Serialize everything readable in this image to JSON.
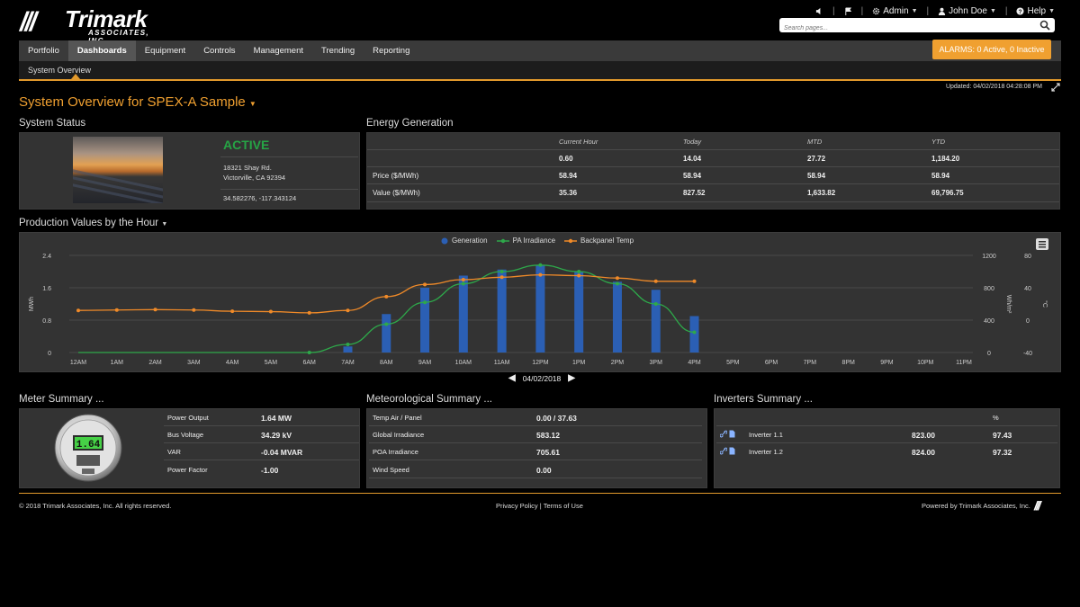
{
  "header": {
    "logo_text": "Trimark",
    "logo_sub": "ASSOCIATES, INC.",
    "logo_mark": "///",
    "links": [
      {
        "label": "",
        "icon": "volume-icon"
      },
      {
        "label": "",
        "icon": "flag-icon"
      },
      {
        "label": "Admin",
        "icon": "gear-icon"
      },
      {
        "label": "John Doe",
        "icon": "user-icon"
      },
      {
        "label": "Help",
        "icon": "help-icon"
      }
    ],
    "search_placeholder": "Search pages..."
  },
  "nav": {
    "tabs": [
      "Portfolio",
      "Dashboards",
      "Equipment",
      "Controls",
      "Management",
      "Trending",
      "Reporting"
    ],
    "active_tab": "Dashboards",
    "sub_tab": "System Overview",
    "alarm": "ALARMS: 0 Active, 0 Inactive"
  },
  "page": {
    "updated": "Updated: 04/02/2018 04:28:08 PM",
    "title": "System Overview for SPEX-A Sample"
  },
  "system_status": {
    "title": "System Status",
    "status": "ACTIVE",
    "address1": "18321 Shay Rd.",
    "address2": "Victorville, CA 92394",
    "coords": "34.582276, -117.343124"
  },
  "energy": {
    "title": "Energy Generation",
    "headers": [
      "Current Hour",
      "Today",
      "MTD",
      "YTD"
    ],
    "rows": [
      {
        "label": "",
        "values": [
          "0.60",
          "14.04",
          "27.72",
          "1,184.20"
        ]
      },
      {
        "label": "Price ($/MWh)",
        "values": [
          "58.94",
          "58.94",
          "58.94",
          "58.94"
        ]
      },
      {
        "label": "Value ($/MWh)",
        "values": [
          "35.36",
          "827.52",
          "1,633.82",
          "69,796.75"
        ]
      }
    ]
  },
  "production": {
    "title": "Production Values by the Hour",
    "date": "04/02/2018"
  },
  "chart_data": {
    "type": "bar",
    "categories": [
      "12AM",
      "1AM",
      "2AM",
      "3AM",
      "4AM",
      "5AM",
      "6AM",
      "7AM",
      "8AM",
      "9AM",
      "10AM",
      "11AM",
      "12PM",
      "1PM",
      "2PM",
      "3PM",
      "4PM",
      "5PM",
      "6PM",
      "7PM",
      "8PM",
      "9PM",
      "10PM",
      "11PM"
    ],
    "series": [
      {
        "name": "Generation",
        "type": "bar",
        "axis": "MWh",
        "color": "#2b5fb4",
        "values": [
          0,
          0,
          0,
          0,
          0,
          0,
          0,
          0.15,
          0.95,
          1.6,
          1.9,
          2.05,
          2.15,
          2.0,
          1.75,
          1.55,
          0.9,
          null,
          null,
          null,
          null,
          null,
          null,
          null
        ]
      },
      {
        "name": "PA Irradiance",
        "type": "line",
        "axis": "Wh/m²",
        "color": "#2ea84a",
        "values": [
          0,
          0,
          0,
          0,
          0,
          0,
          0,
          100,
          350,
          620,
          850,
          1000,
          1080,
          1000,
          850,
          600,
          250,
          null,
          null,
          null,
          null,
          null,
          null,
          null
        ]
      },
      {
        "name": "Backpanel Temp",
        "type": "line",
        "axis": "°C",
        "color": "#f08a28",
        "values": [
          12,
          12.5,
          13,
          12.5,
          11,
          10.5,
          9,
          12,
          29,
          44,
          50,
          53,
          56,
          55,
          52,
          48,
          48,
          null,
          null,
          null,
          null,
          null,
          null,
          null
        ]
      }
    ],
    "axes": {
      "left": {
        "label": "MWh",
        "ticks": [
          "0",
          "0.8",
          "1.6",
          "2.4"
        ],
        "range": [
          0,
          2.4
        ]
      },
      "right1": {
        "label": "Wh/m²",
        "ticks": [
          "0",
          "400",
          "800",
          "1200"
        ],
        "range": [
          0,
          1200
        ]
      },
      "right2": {
        "label": "°C",
        "ticks": [
          "-40",
          "0",
          "40",
          "80"
        ],
        "range": [
          -40,
          80
        ]
      }
    },
    "legend": "top-center"
  },
  "meter": {
    "title": "Meter Summary ...",
    "display": "1.64",
    "rows": [
      {
        "label": "Power Output",
        "value": "1.64 MW"
      },
      {
        "label": "Bus Voltage",
        "value": "34.29 kV"
      },
      {
        "label": "VAR",
        "value": "-0.04 MVAR"
      },
      {
        "label": "Power Factor",
        "value": "-1.00"
      }
    ]
  },
  "met": {
    "title": "Meteorological Summary ...",
    "rows": [
      {
        "label": "Temp Air / Panel",
        "value": "0.00 / 37.63"
      },
      {
        "label": "Global Irradiance",
        "value": "583.12"
      },
      {
        "label": "POA Irradiance",
        "value": "705.61"
      },
      {
        "label": "Wind Speed",
        "value": "0.00"
      }
    ]
  },
  "inverters": {
    "title": "Inverters Summary ...",
    "pct_header": "%",
    "rows": [
      {
        "name": "Inverter 1.1",
        "value": "823.00",
        "pct": "97.43"
      },
      {
        "name": "Inverter 1.2",
        "value": "824.00",
        "pct": "97.32"
      }
    ]
  },
  "footer": {
    "copyright": "© 2018 Trimark Associates, Inc. All rights reserved.",
    "privacy": "Privacy Policy",
    "sep": "|",
    "terms": "Terms of Use",
    "powered": "Powered by Trimark Associates, Inc."
  }
}
